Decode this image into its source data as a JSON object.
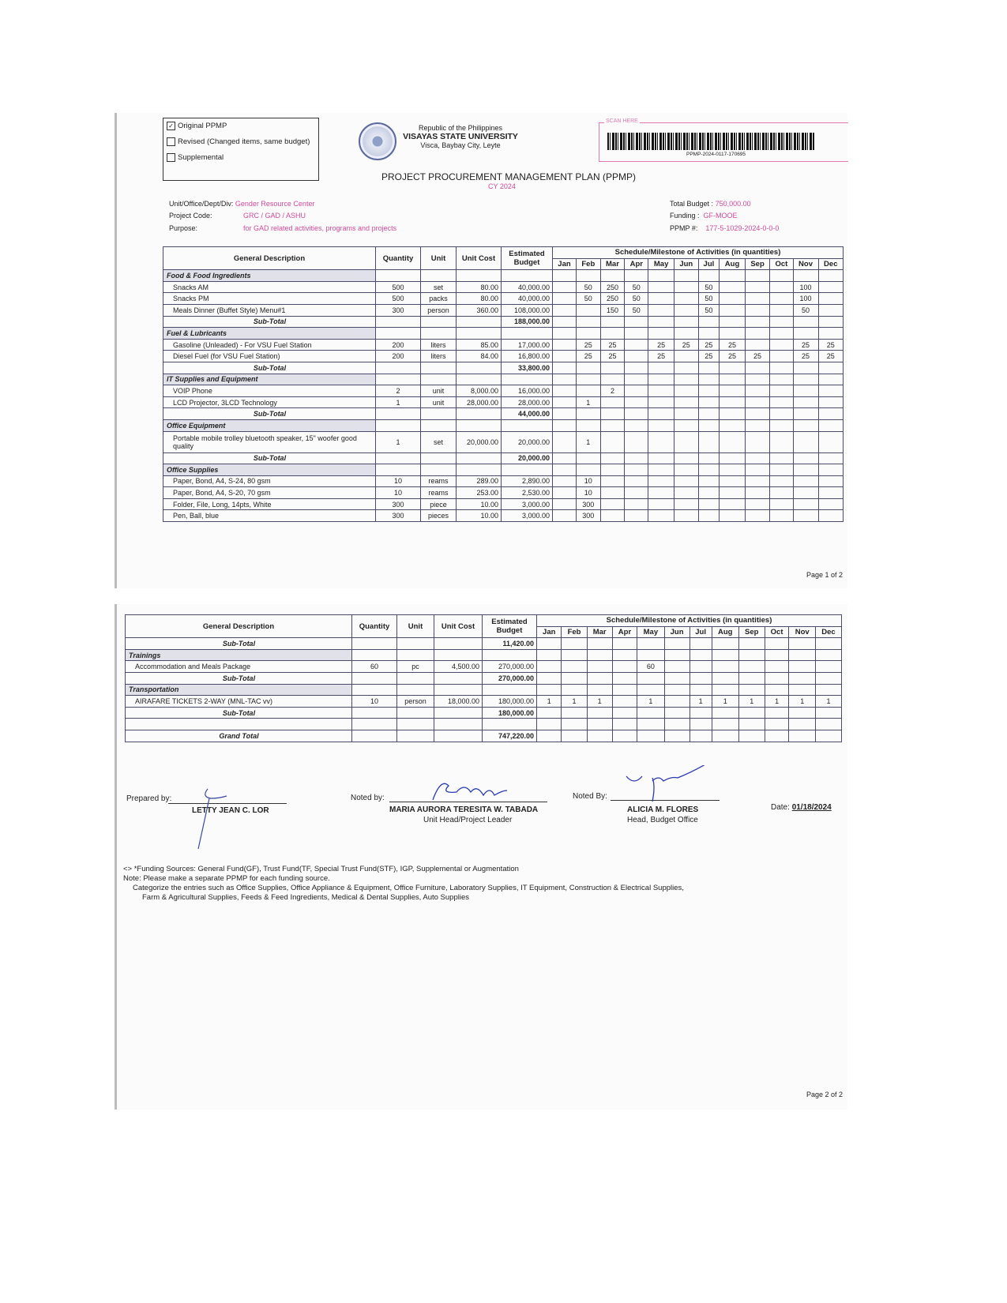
{
  "header": {
    "checkboxes": [
      {
        "label": "Original PPMP",
        "checked": true
      },
      {
        "label": "Revised (Changed items, same budget)",
        "checked": false
      },
      {
        "label": "Supplemental",
        "checked": false
      }
    ],
    "republic": "Republic of the Philippines",
    "university": "VISAYAS STATE UNIVERSITY",
    "address": "Visca, Baybay City, Leyte",
    "scan_label": "SCAN HERE",
    "barcode_text": "PPMP-2024-0117-170695",
    "title": "PROJECT PROCUREMENT MANAGEMENT PLAN (PPMP)",
    "cy": "CY 2024",
    "unit_label": "Unit/Office/Dept/Div:",
    "unit_value": "Gender Resource Center",
    "code_label": "Project Code:",
    "code_value": "GRC / GAD / ASHU",
    "purpose_label": "Purpose:",
    "purpose_value": "for GAD related activities, programs and projects",
    "budget_label": "Total Budget :",
    "budget_value": "750,000.00",
    "funding_label": "Funding :",
    "funding_value": "GF-MOOE",
    "ppmp_label": "PPMP #:",
    "ppmp_value": "177-5-1029-2024-0-0-0",
    "accent": "#d04a9a"
  },
  "columns": {
    "desc": "General Description",
    "qty": "Quantity",
    "unit": "Unit",
    "cost": "Unit Cost",
    "budget": "Estimated Budget",
    "schedule": "Schedule/Milestone of Activities (in quantities)",
    "months": [
      "Jan",
      "Feb",
      "Mar",
      "Apr",
      "May",
      "Jun",
      "Jul",
      "Aug",
      "Sep",
      "Oct",
      "Nov",
      "Dec"
    ]
  },
  "page1_rows": [
    {
      "type": "cat",
      "desc": "Food & Food Ingredients"
    },
    {
      "type": "item",
      "desc": "Snacks AM",
      "qty": "500",
      "unit": "set",
      "cost": "80.00",
      "budget": "40,000.00",
      "m": [
        "",
        "50",
        "250",
        "50",
        "",
        "",
        "50",
        "",
        "",
        "",
        "100",
        ""
      ]
    },
    {
      "type": "item",
      "desc": "Snacks PM",
      "qty": "500",
      "unit": "packs",
      "cost": "80.00",
      "budget": "40,000.00",
      "m": [
        "",
        "50",
        "250",
        "50",
        "",
        "",
        "50",
        "",
        "",
        "",
        "100",
        ""
      ]
    },
    {
      "type": "item",
      "desc": "Meals Dinner (Buffet Style) Menu#1",
      "qty": "300",
      "unit": "person",
      "cost": "360.00",
      "budget": "108,000.00",
      "m": [
        "",
        "",
        "150",
        "50",
        "",
        "",
        "50",
        "",
        "",
        "",
        "50",
        ""
      ]
    },
    {
      "type": "sub",
      "desc": "Sub-Total",
      "budget": "188,000.00"
    },
    {
      "type": "cat",
      "desc": "Fuel & Lubricants"
    },
    {
      "type": "item",
      "desc": "Gasoline (Unleaded) - For VSU Fuel Station",
      "qty": "200",
      "unit": "liters",
      "cost": "85.00",
      "budget": "17,000.00",
      "m": [
        "",
        "25",
        "25",
        "",
        "25",
        "25",
        "25",
        "25",
        "",
        "",
        "25",
        "25"
      ]
    },
    {
      "type": "item",
      "desc": "Diesel Fuel (for VSU Fuel Station)",
      "qty": "200",
      "unit": "liters",
      "cost": "84.00",
      "budget": "16,800.00",
      "m": [
        "",
        "25",
        "25",
        "",
        "25",
        "",
        "25",
        "25",
        "25",
        "",
        "25",
        "25"
      ]
    },
    {
      "type": "sub",
      "desc": "Sub-Total",
      "budget": "33,800.00"
    },
    {
      "type": "cat",
      "desc": "IT Supplies and Equipment"
    },
    {
      "type": "item",
      "desc": "VOIP Phone",
      "qty": "2",
      "unit": "unit",
      "cost": "8,000.00",
      "budget": "16,000.00",
      "m": [
        "",
        "",
        "2",
        "",
        "",
        "",
        "",
        "",
        "",
        "",
        "",
        ""
      ]
    },
    {
      "type": "item",
      "desc": "LCD Projector, 3LCD Technology",
      "qty": "1",
      "unit": "unit",
      "cost": "28,000.00",
      "budget": "28,000.00",
      "m": [
        "",
        "1",
        "",
        "",
        "",
        "",
        "",
        "",
        "",
        "",
        "",
        ""
      ]
    },
    {
      "type": "sub",
      "desc": "Sub-Total",
      "budget": "44,000.00"
    },
    {
      "type": "cat",
      "desc": "Office Equipment"
    },
    {
      "type": "item",
      "tall": true,
      "desc": "Portable mobile trolley bluetooth speaker, 15\" woofer good quality",
      "qty": "1",
      "unit": "set",
      "cost": "20,000.00",
      "budget": "20,000.00",
      "m": [
        "",
        "1",
        "",
        "",
        "",
        "",
        "",
        "",
        "",
        "",
        "",
        ""
      ]
    },
    {
      "type": "sub",
      "desc": "Sub-Total",
      "budget": "20,000.00"
    },
    {
      "type": "cat",
      "desc": "Office Supplies"
    },
    {
      "type": "item",
      "desc": "Paper, Bond, A4, S-24, 80 gsm",
      "qty": "10",
      "unit": "reams",
      "cost": "289.00",
      "budget": "2,890.00",
      "m": [
        "",
        "10",
        "",
        "",
        "",
        "",
        "",
        "",
        "",
        "",
        "",
        ""
      ]
    },
    {
      "type": "item",
      "desc": "Paper, Bond, A4, S-20, 70 gsm",
      "qty": "10",
      "unit": "reams",
      "cost": "253.00",
      "budget": "2,530.00",
      "m": [
        "",
        "10",
        "",
        "",
        "",
        "",
        "",
        "",
        "",
        "",
        "",
        ""
      ]
    },
    {
      "type": "item",
      "desc": "Folder, File, Long, 14pts, White",
      "qty": "300",
      "unit": "piece",
      "cost": "10.00",
      "budget": "3,000.00",
      "m": [
        "",
        "300",
        "",
        "",
        "",
        "",
        "",
        "",
        "",
        "",
        "",
        ""
      ]
    },
    {
      "type": "item",
      "desc": "Pen, Ball, blue",
      "qty": "300",
      "unit": "pieces",
      "cost": "10.00",
      "budget": "3,000.00",
      "m": [
        "",
        "300",
        "",
        "",
        "",
        "",
        "",
        "",
        "",
        "",
        "",
        ""
      ]
    }
  ],
  "page2_rows": [
    {
      "type": "sub",
      "desc": "Sub-Total",
      "budget": "11,420.00"
    },
    {
      "type": "cat",
      "desc": "Trainings"
    },
    {
      "type": "item",
      "desc": "Accommodation and Meals Package",
      "qty": "60",
      "unit": "pc",
      "cost": "4,500.00",
      "budget": "270,000.00",
      "m": [
        "",
        "",
        "",
        "",
        "60",
        "",
        "",
        "",
        "",
        "",
        "",
        ""
      ]
    },
    {
      "type": "sub",
      "desc": "Sub-Total",
      "budget": "270,000.00"
    },
    {
      "type": "cat",
      "desc": "Transportation"
    },
    {
      "type": "item",
      "desc": "AIRAFARE TICKETS 2-WAY (MNL-TAC vv)",
      "qty": "10",
      "unit": "person",
      "cost": "18,000.00",
      "budget": "180,000.00",
      "m": [
        "1",
        "1",
        "1",
        "",
        "1",
        "",
        "1",
        "1",
        "1",
        "1",
        "1",
        "1"
      ]
    },
    {
      "type": "sub",
      "desc": "Sub-Total",
      "budget": "180,000.00"
    },
    {
      "type": "blank",
      "desc": ""
    },
    {
      "type": "sub",
      "desc": "Grand Total",
      "budget": "747,220.00"
    }
  ],
  "signatures": {
    "prepared_label": "Prepared by:",
    "prepared_name": "LETTY JEAN C. LOR",
    "noted1_label": "Noted by:",
    "noted1_name": "MARIA AURORA TERESITA W. TABADA",
    "noted1_title": "Unit Head/Project Leader",
    "noted2_label": "Noted By:",
    "noted2_name": "ALICIA M. FLORES",
    "noted2_title": "Head, Budget Office",
    "date_label": "Date:",
    "date_value": "01/18/2024"
  },
  "notes": [
    "<> *Funding Sources: General Fund(GF), Trust Fund(TF, Special Trust Fund(STF), IGP, Supplemental or Augmentation",
    "Note: Please make a separate PPMP for each funding source.",
    "Categorize the entries such as Office Supplies, Office Appliance & Equipment, Office Furniture, Laboratory Supplies, IT Equipment, Construction & Electrical Supplies,",
    "Farm & Agricultural Supplies, Feeds & Feed Ingredients, Medical & Dental Supplies, Auto Supplies"
  ],
  "page_labels": [
    "Page 1 of 2",
    "Page 2 of 2"
  ]
}
